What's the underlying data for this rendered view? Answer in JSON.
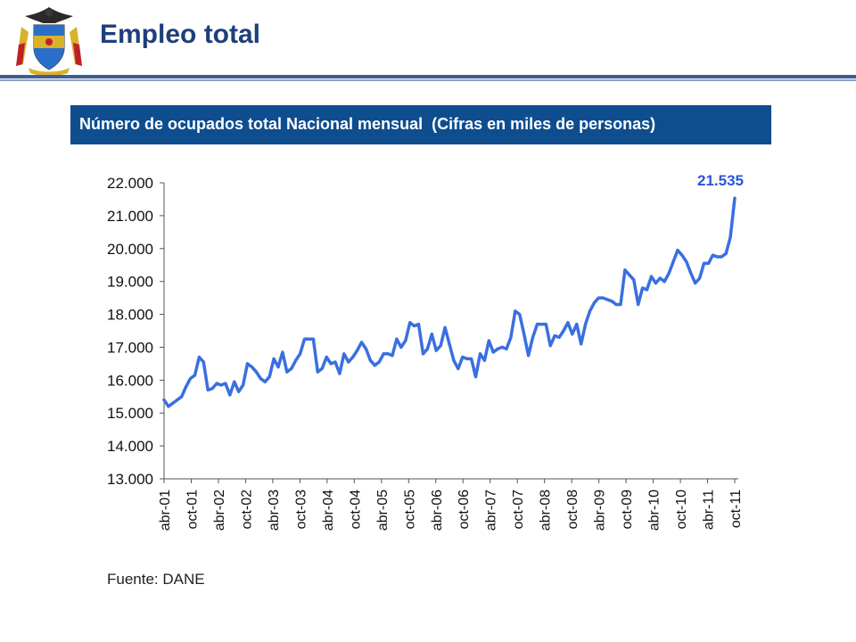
{
  "header": {
    "title": "Empleo total"
  },
  "banner": {
    "text": "Número de ocupados total Nacional mensual  (Cifras en miles de personas)"
  },
  "source": "Fuente: DANE",
  "colors": {
    "line": "#3a6fe0",
    "banner": "#0e4d8e",
    "title": "#1f3f7a",
    "callout": "#2a55d6"
  },
  "chart_data": {
    "type": "line",
    "series": [
      {
        "values": [
          15400,
          15200,
          15300,
          15400,
          15500,
          15800,
          16050,
          16150,
          16700,
          16550,
          15700,
          15750,
          15900,
          15850,
          15900,
          15550,
          15950,
          15650,
          15850,
          16500,
          16400,
          16250,
          16050,
          15950,
          16100,
          16650,
          16400,
          16850,
          16250,
          16350,
          16600,
          16800,
          17250,
          17250,
          17250,
          16250,
          16350,
          16700,
          16500,
          16550,
          16200,
          16800,
          16550,
          16700,
          16900,
          17150,
          16950,
          16600,
          16450,
          16550,
          16800,
          16800,
          16750,
          17250,
          17000,
          17200,
          17750,
          17650,
          17700,
          16800,
          16950,
          17400,
          16900,
          17050,
          17600,
          17100,
          16600,
          16350,
          16700,
          16650,
          16650,
          16100,
          16800,
          16600,
          17200,
          16850,
          16950,
          17000,
          16950,
          17300,
          18100,
          18000,
          17400,
          16750,
          17300,
          17700,
          17700,
          17700,
          17050,
          17350,
          17300,
          17500,
          17750,
          17400,
          17700,
          17100,
          17700,
          18100,
          18350,
          18500,
          18500,
          18450,
          18400,
          18300,
          18300,
          19350,
          19200,
          19050,
          18300,
          18800,
          18750,
          19150,
          18950,
          19100,
          19000,
          19250,
          19600,
          19950,
          19800,
          19600,
          19250,
          18950,
          19100,
          19550,
          19550,
          19800,
          19750,
          19750,
          19850,
          20350,
          21535
        ]
      }
    ],
    "x_tick_labels": [
      "abr-01",
      "oct-01",
      "abr-02",
      "oct-02",
      "abr-03",
      "oct-03",
      "abr-04",
      "oct-04",
      "abr-05",
      "oct-05",
      "abr-06",
      "oct-06",
      "abr-07",
      "oct-07",
      "abr-08",
      "oct-08",
      "abr-09",
      "oct-09",
      "abr-10",
      "oct-10",
      "abr-11",
      "oct-11"
    ],
    "y_ticks": [
      13000,
      14000,
      15000,
      16000,
      17000,
      18000,
      19000,
      20000,
      21000,
      22000
    ],
    "y_tick_labels": [
      "13.000",
      "14.000",
      "15.000",
      "16.000",
      "17.000",
      "18.000",
      "19.000",
      "20.000",
      "21.000",
      "22.000"
    ],
    "ylim": [
      13000,
      22000
    ],
    "x_range": [
      "abr-01",
      "oct-11"
    ],
    "grid": false,
    "annotation": {
      "text": "21.535",
      "value": 21535,
      "at": "last point"
    }
  }
}
